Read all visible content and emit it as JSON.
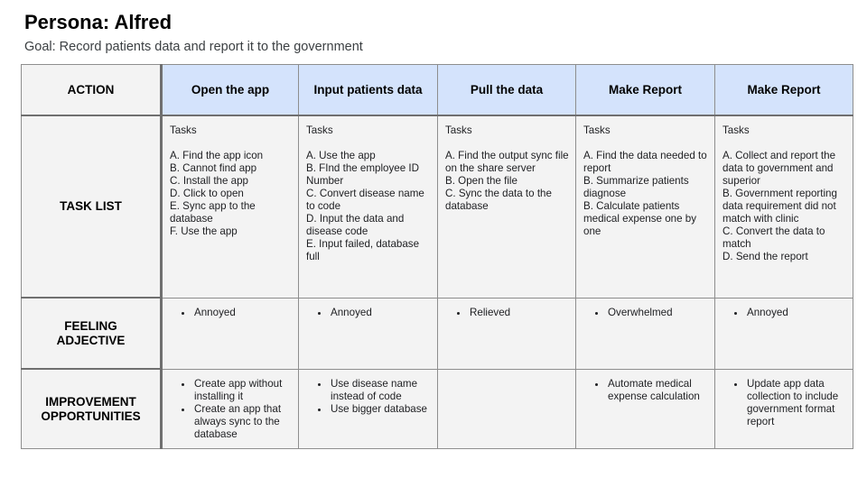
{
  "persona_title": "Persona: Alfred",
  "goal": "Goal: Record patients data and report it to the government",
  "row_headers": {
    "action": "ACTION",
    "task_list": "TASK LIST",
    "feeling": "FEELING ADJECTIVE",
    "improvement": "IMPROVEMENT OPPORTUNITIES"
  },
  "stages": [
    {
      "action": "Open the app",
      "tasks_label": "Tasks",
      "tasks": [
        "A. Find the app icon",
        "B. Cannot find app",
        "C. Install the app",
        "D. Click to open",
        "E. Sync app to the database",
        "F. Use the app"
      ],
      "feeling": [
        "Annoyed"
      ],
      "improvements": [
        "Create app without installing it",
        "Create an app that always sync to the database"
      ]
    },
    {
      "action": "Input patients data",
      "tasks_label": "Tasks",
      "tasks": [
        "A. Use the app",
        "B. FInd the employee ID Number",
        "C. Convert disease name to code",
        "D. Input the data and disease code",
        "E. Input failed, database full"
      ],
      "feeling": [
        "Annoyed"
      ],
      "improvements": [
        "Use disease name instead of code",
        "Use bigger database"
      ]
    },
    {
      "action": "Pull the data",
      "tasks_label": "Tasks",
      "tasks": [
        "A. Find the output sync file on the share server",
        "B. Open the file",
        "C. Sync the data to the database"
      ],
      "feeling": [
        "Relieved"
      ],
      "improvements": []
    },
    {
      "action": "Make Report",
      "tasks_label": "Tasks",
      "tasks": [
        "A. Find the data needed to report",
        "B. Summarize patients diagnose",
        "B. Calculate patients medical expense one by one"
      ],
      "feeling": [
        "Overwhelmed"
      ],
      "improvements": [
        "Automate medical expense calculation"
      ]
    },
    {
      "action": "Make Report",
      "tasks_label": "Tasks",
      "tasks": [
        "A. Collect and report the data to government and superior",
        "B. Government reporting data requirement did not match with clinic",
        "C. Convert the data to match",
        "D. Send the report"
      ],
      "feeling": [
        "Annoyed"
      ],
      "improvements": [
        "Update app data collection  to include government format report"
      ]
    }
  ],
  "colors": {
    "stage_header_bg": "#d4e3fc",
    "cell_bg": "#f3f3f3",
    "border": "#8e8e8e"
  }
}
